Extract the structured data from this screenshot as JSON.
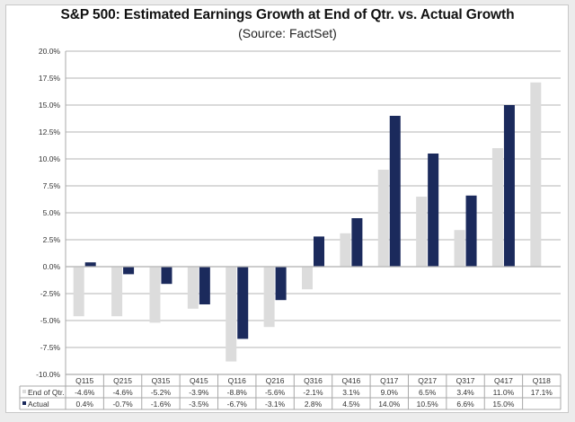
{
  "chart_data": {
    "type": "bar",
    "title": "S&P 500: Estimated Earnings Growth  at End of Qtr. vs. Actual Growth",
    "subtitle": "(Source: FactSet)",
    "xlabel": "",
    "ylabel": "",
    "categories": [
      "Q115",
      "Q215",
      "Q315",
      "Q415",
      "Q116",
      "Q216",
      "Q316",
      "Q416",
      "Q117",
      "Q217",
      "Q317",
      "Q417",
      "Q118"
    ],
    "series": [
      {
        "name": "End of Qtr.",
        "color": "#dcdcdc",
        "values": [
          -4.6,
          -4.6,
          -5.2,
          -3.9,
          -8.8,
          -5.6,
          -2.1,
          3.1,
          9.0,
          6.5,
          3.4,
          11.0,
          17.1
        ],
        "labels": [
          "-4.6%",
          "-4.6%",
          "-5.2%",
          "-3.9%",
          "-8.8%",
          "-5.6%",
          "-2.1%",
          "3.1%",
          "9.0%",
          "6.5%",
          "3.4%",
          "11.0%",
          "17.1%"
        ]
      },
      {
        "name": "Actual",
        "color": "#1b2a5c",
        "values": [
          0.4,
          -0.7,
          -1.6,
          -3.5,
          -6.7,
          -3.1,
          2.8,
          4.5,
          14.0,
          10.5,
          6.6,
          15.0,
          null
        ],
        "labels": [
          "0.4%",
          "-0.7%",
          "-1.6%",
          "-3.5%",
          "-6.7%",
          "-3.1%",
          "2.8%",
          "4.5%",
          "14.0%",
          "10.5%",
          "6.6%",
          "15.0%",
          ""
        ]
      }
    ],
    "ylim": [
      -10,
      20
    ],
    "yticks": [
      20,
      17.5,
      15,
      12.5,
      10,
      7.5,
      5,
      2.5,
      0,
      -2.5,
      -5,
      -7.5,
      -10
    ],
    "ytick_labels": [
      "20.0%",
      "17.5%",
      "15.0%",
      "12.5%",
      "10.0%",
      "7.5%",
      "5.0%",
      "2.5%",
      "0.0%",
      "-2.5%",
      "-5.0%",
      "-7.5%",
      "-10.0%"
    ],
    "grid": true,
    "legend": "data-table-below"
  }
}
